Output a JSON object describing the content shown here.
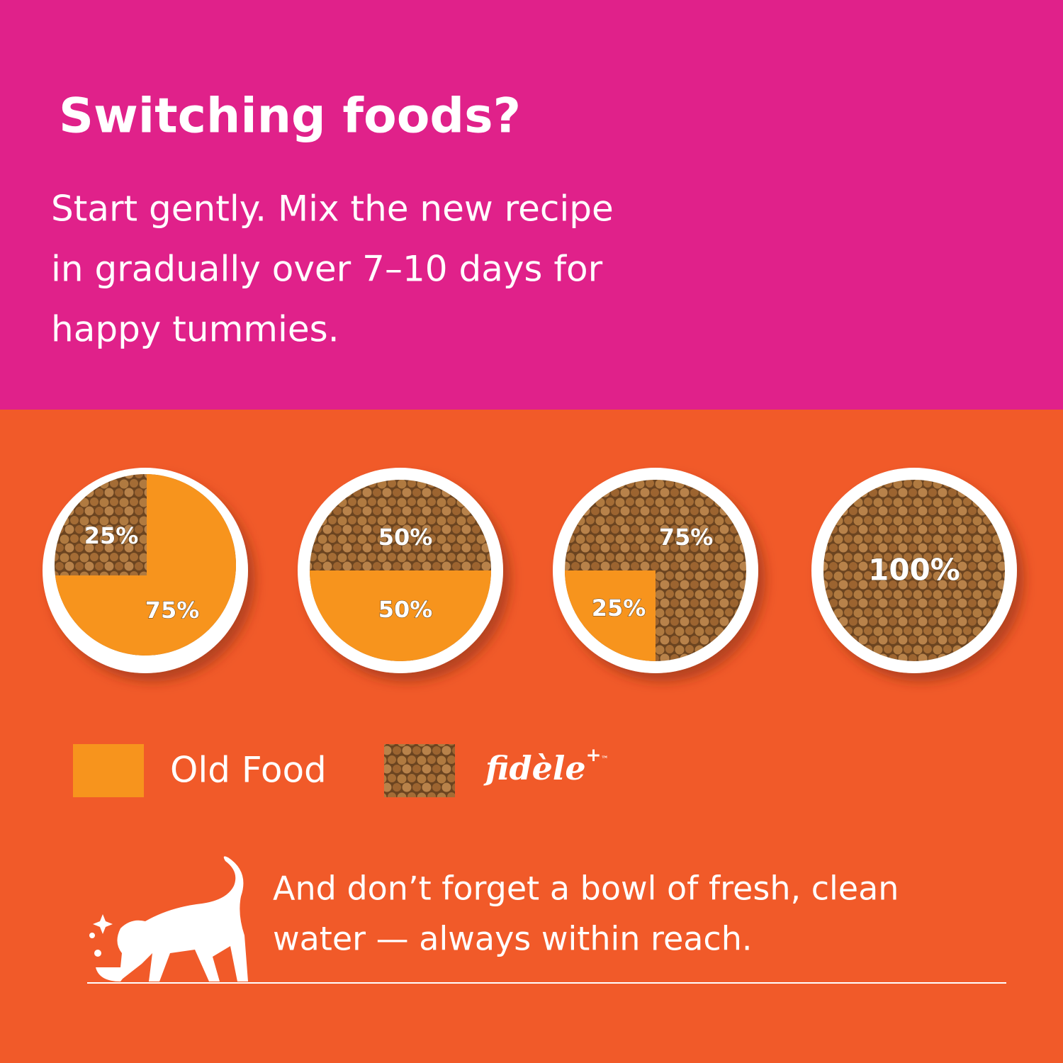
{
  "header": {
    "title": "Switching foods?",
    "lines": [
      "Start gently. Mix the new recipe",
      "in gradually over 7–10 days for",
      "happy tummies."
    ]
  },
  "bowls": [
    {
      "new": "25%",
      "old": "75%"
    },
    {
      "new": "50%",
      "old": "50%"
    },
    {
      "new": "75%",
      "old": "25%"
    },
    {
      "new": "100%"
    }
  ],
  "legend": {
    "old": "Old Food",
    "new": "fidèle",
    "new_mark": "+",
    "tm": "™"
  },
  "footer": {
    "lines": [
      "And don’t forget a bowl of fresh, clean",
      "water — always within reach."
    ]
  }
}
